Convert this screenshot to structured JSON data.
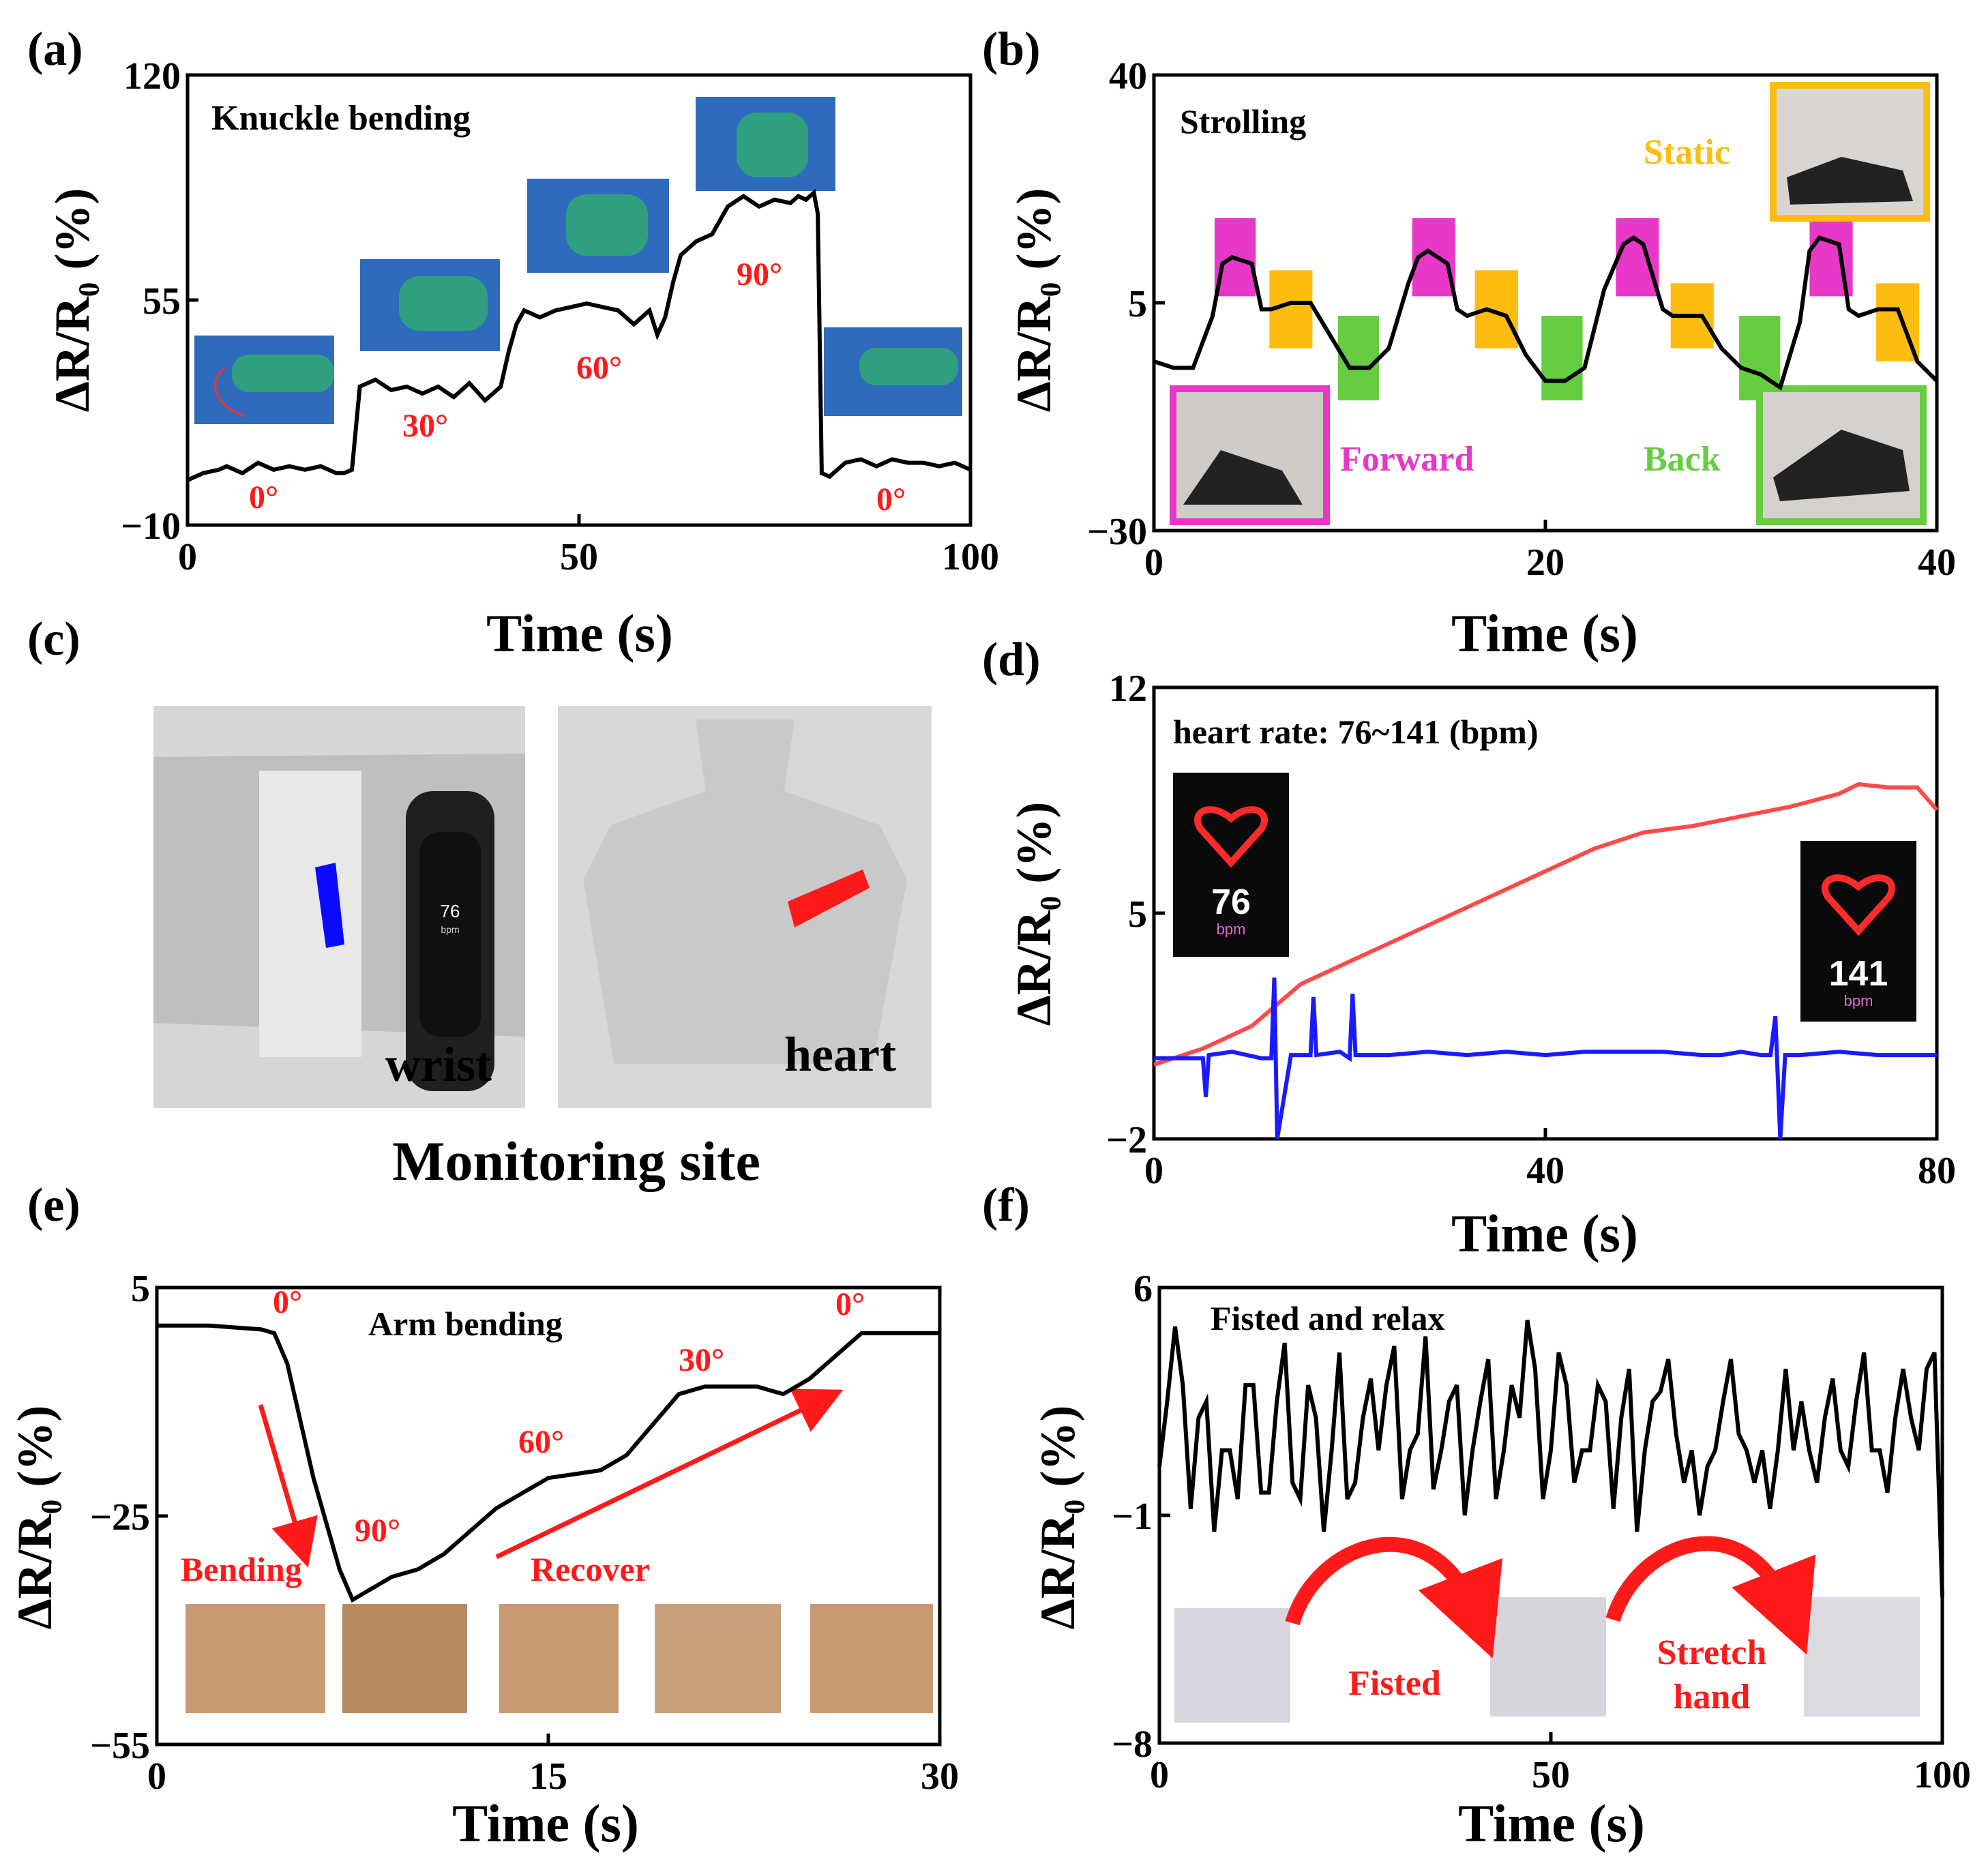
{
  "figure": {
    "panels": [
      {
        "id": "a",
        "label": "(a)"
      },
      {
        "id": "b",
        "label": "(b)"
      },
      {
        "id": "c",
        "label": "(c)"
      },
      {
        "id": "d",
        "label": "(d)"
      },
      {
        "id": "e",
        "label": "(e)"
      },
      {
        "id": "f",
        "label": "(f)"
      }
    ],
    "panel_c": {
      "wrist_label": "wrist",
      "heart_label": "heart",
      "caption": "Monitoring site",
      "watch_display": "76",
      "watch_unit": "bpm"
    },
    "panel_d_screens": {
      "left_value": "76",
      "right_value": "141",
      "unit": "bpm"
    },
    "panel_e_photos": 5,
    "panel_f_labels": {
      "fisted": "Fisted",
      "stretch1": "Stretch",
      "stretch2": "hand"
    }
  },
  "chart_data": [
    {
      "id": "a",
      "type": "line",
      "title": "Knuckle bending",
      "xlabel": "Time (s)",
      "ylabel": "ΔR/R₀ (%)",
      "xlim": [
        0,
        100
      ],
      "ylim": [
        -10,
        120
      ],
      "xticks": [
        0,
        50,
        100
      ],
      "yticks": [
        -10,
        55,
        120
      ],
      "annotations": [
        "0°",
        "30°",
        "60°",
        "90°",
        "0°"
      ],
      "series": [
        {
          "name": "knuckle",
          "color": "#000000",
          "x": [
            0,
            2,
            4,
            5,
            7,
            9,
            11,
            13,
            15,
            17,
            19,
            20,
            21,
            22,
            24,
            26,
            28,
            30,
            32,
            34,
            36,
            38,
            39,
            40,
            41,
            42,
            43,
            45,
            47,
            49,
            51,
            53,
            55,
            57,
            59,
            60,
            61,
            62,
            63,
            65,
            67,
            69,
            71,
            73,
            75,
            77,
            78,
            79,
            80,
            80.5,
            81,
            82,
            84,
            86,
            88,
            90,
            92,
            94,
            96,
            98,
            100
          ],
          "y": [
            3,
            5,
            6,
            7,
            5,
            8,
            6,
            7,
            6,
            7,
            5,
            5,
            6,
            30,
            32,
            29,
            30,
            28,
            30,
            27,
            31,
            26,
            28,
            30,
            40,
            48,
            52,
            50,
            52,
            53,
            54,
            53,
            52,
            48,
            52,
            45,
            50,
            60,
            68,
            72,
            74,
            82,
            85,
            82,
            84,
            83,
            85,
            84,
            86,
            80,
            5,
            4,
            8,
            9,
            7,
            9,
            8,
            8,
            7,
            8,
            6
          ]
        }
      ]
    },
    {
      "id": "b",
      "type": "line",
      "title": "Strolling",
      "xlabel": "Time (s)",
      "ylabel": "ΔR/R₀ (%)",
      "xlim": [
        0,
        40
      ],
      "ylim": [
        -30,
        40
      ],
      "xticks": [
        0,
        20,
        40
      ],
      "yticks": [
        -30,
        5,
        40
      ],
      "legend": [
        "Static",
        "Forward",
        "Back"
      ],
      "phase_colors": {
        "Forward": "#e838c8",
        "Static": "#fcbc10",
        "Back": "#66cc40"
      },
      "phases": [
        {
          "phase": "Forward",
          "x": [
            3.1,
            5.2
          ],
          "y": [
            6,
            18
          ]
        },
        {
          "phase": "Static",
          "x": [
            5.9,
            8.1
          ],
          "y": [
            -2,
            10
          ]
        },
        {
          "phase": "Back",
          "x": [
            9.4,
            11.5
          ],
          "y": [
            -10,
            3
          ]
        },
        {
          "phase": "Forward",
          "x": [
            13.2,
            15.4
          ],
          "y": [
            6,
            18
          ]
        },
        {
          "phase": "Static",
          "x": [
            16.4,
            18.6
          ],
          "y": [
            -2,
            10
          ]
        },
        {
          "phase": "Back",
          "x": [
            19.8,
            21.9
          ],
          "y": [
            -10,
            3
          ]
        },
        {
          "phase": "Forward",
          "x": [
            23.6,
            25.8
          ],
          "y": [
            6,
            18
          ]
        },
        {
          "phase": "Static",
          "x": [
            26.4,
            28.6
          ],
          "y": [
            -2,
            8
          ]
        },
        {
          "phase": "Back",
          "x": [
            29.9,
            32.0
          ],
          "y": [
            -10,
            3
          ]
        },
        {
          "phase": "Forward",
          "x": [
            33.5,
            35.7
          ],
          "y": [
            6,
            18
          ]
        },
        {
          "phase": "Static",
          "x": [
            36.9,
            39.1
          ],
          "y": [
            -4,
            8
          ]
        }
      ],
      "series": [
        {
          "name": "strolling",
          "color": "#000000",
          "x": [
            0,
            1,
            2,
            3,
            3.5,
            4,
            5,
            5.5,
            6,
            7,
            8,
            9,
            10,
            11,
            12,
            13,
            13.5,
            14,
            15,
            15.5,
            16,
            17,
            18,
            19,
            20,
            21,
            22,
            23,
            24,
            24.5,
            25,
            26,
            26.5,
            27,
            28,
            29,
            30,
            31,
            32,
            33,
            33.5,
            34,
            35,
            35.5,
            36,
            37,
            38,
            39,
            40
          ],
          "y": [
            -4,
            -5,
            -5,
            3,
            11,
            12,
            11,
            4,
            4,
            5,
            5,
            0,
            -5,
            -5,
            -2,
            8,
            12,
            13,
            11,
            4,
            3,
            4,
            3,
            -3,
            -7,
            -7,
            -5,
            7,
            14,
            15,
            14,
            4,
            3,
            3,
            3,
            -2,
            -5,
            -6,
            -8,
            2,
            13,
            15,
            14,
            4,
            3,
            4,
            4,
            -4,
            -7
          ]
        }
      ]
    },
    {
      "id": "d",
      "type": "line",
      "title": "heart rate: 76~141 (bpm)",
      "xlabel": "Time (s)",
      "ylabel": "ΔR/R₀ (%)",
      "xlim": [
        0,
        80
      ],
      "ylim": [
        -2,
        12
      ],
      "xticks": [
        0,
        40,
        80
      ],
      "yticks": [
        -2,
        5,
        12
      ],
      "series": [
        {
          "name": "heart",
          "color": "#ff4a4a",
          "x": [
            0,
            5,
            10,
            15,
            20,
            25,
            30,
            35,
            40,
            45,
            50,
            55,
            60,
            65,
            70,
            72,
            75,
            78,
            80
          ],
          "y": [
            0.3,
            0.8,
            1.5,
            2.8,
            3.5,
            4.2,
            4.9,
            5.6,
            6.3,
            7.0,
            7.5,
            7.7,
            8.0,
            8.3,
            8.7,
            9.0,
            8.9,
            8.9,
            8.2
          ]
        },
        {
          "name": "wrist",
          "color": "#1a1aff",
          "x": [
            0,
            5,
            5.3,
            5.6,
            8,
            11,
            12,
            12.3,
            12.6,
            14,
            16,
            16.3,
            16.6,
            19,
            20,
            20.3,
            20.6,
            24,
            28,
            32,
            36,
            40,
            44,
            48,
            52,
            56,
            58,
            60,
            62,
            63,
            63.5,
            64,
            64.5,
            66,
            70,
            74,
            78,
            80
          ],
          "y": [
            0.5,
            0.5,
            -0.7,
            0.6,
            0.7,
            0.5,
            0.5,
            3.0,
            -2.0,
            0.6,
            0.6,
            2.4,
            0.6,
            0.7,
            0.5,
            2.5,
            0.6,
            0.6,
            0.7,
            0.6,
            0.7,
            0.6,
            0.7,
            0.7,
            0.7,
            0.6,
            0.6,
            0.7,
            0.6,
            0.6,
            1.8,
            -2.0,
            0.6,
            0.6,
            0.7,
            0.6,
            0.6,
            0.6
          ]
        }
      ]
    },
    {
      "id": "e",
      "type": "line",
      "title": "Arm bending",
      "xlabel": "Time (s)",
      "ylabel": "ΔR/R₀ (%)",
      "xlim": [
        0,
        30
      ],
      "ylim": [
        -55,
        5
      ],
      "xticks": [
        0,
        15,
        30
      ],
      "yticks": [
        -55,
        -25,
        5
      ],
      "annotations": [
        "0°",
        "90°",
        "60°",
        "30°",
        "0°",
        "Bending",
        "Recover"
      ],
      "series": [
        {
          "name": "arm",
          "color": "#000000",
          "x": [
            0,
            2,
            4,
            4.5,
            5,
            6,
            7,
            7.5,
            8,
            9,
            10,
            11,
            12,
            13,
            14,
            15,
            16,
            17,
            18,
            19,
            20,
            21,
            22,
            23,
            24,
            25,
            26,
            27,
            28,
            29,
            30
          ],
          "y": [
            0,
            0,
            -0.5,
            -1,
            -5,
            -20,
            -32,
            -36,
            -35,
            -33,
            -32,
            -30,
            -27,
            -24,
            -22,
            -20,
            -19.5,
            -19,
            -17,
            -13,
            -9,
            -8,
            -8,
            -8,
            -9,
            -7,
            -4,
            -1,
            -1,
            -1,
            -1
          ]
        }
      ]
    },
    {
      "id": "f",
      "type": "line",
      "title": "Fisted and relax",
      "xlabel": "Time (s)",
      "ylabel": "ΔR/R₀ (%)",
      "xlim": [
        0,
        100
      ],
      "ylim": [
        -8,
        6
      ],
      "xticks": [
        0,
        50,
        100
      ],
      "yticks": [
        -8,
        -1,
        6
      ],
      "annotations": [
        "Fisted",
        "Stretch hand"
      ],
      "series": [
        {
          "name": "fist",
          "color": "#000000",
          "x": [
            0,
            1,
            2,
            3,
            4,
            5,
            6,
            7,
            8,
            9,
            10,
            11,
            12,
            13,
            14,
            15,
            16,
            17,
            18,
            19,
            20,
            21,
            22,
            23,
            24,
            25,
            26,
            27,
            28,
            29,
            30,
            31,
            32,
            33,
            34,
            35,
            36,
            37,
            38,
            39,
            40,
            41,
            42,
            43,
            44,
            45,
            46,
            47,
            48,
            49,
            50,
            51,
            52,
            53,
            54,
            55,
            56,
            57,
            58,
            59,
            60,
            61,
            62,
            63,
            64,
            65,
            66,
            67,
            68,
            69,
            70,
            71,
            72,
            73,
            74,
            75,
            76,
            77,
            78,
            79,
            80,
            81,
            82,
            83,
            84,
            85,
            86,
            87,
            88,
            89,
            90,
            91,
            92,
            93,
            94,
            95,
            96,
            97,
            98,
            99,
            100
          ],
          "y": [
            0.5,
            2.5,
            4.8,
            3,
            -0.8,
            2,
            2.5,
            -1.5,
            1,
            1,
            -0.5,
            3,
            3,
            -0.3,
            -0.3,
            2.5,
            4.3,
            0,
            -0.5,
            3,
            2,
            -1.5,
            1,
            4,
            -0.5,
            0,
            2,
            3.2,
            1,
            3,
            4.2,
            -0.5,
            1,
            1.5,
            4.5,
            -0.2,
            1,
            2.5,
            3,
            -1,
            1,
            2.5,
            3.8,
            -0.5,
            1,
            3,
            2,
            5,
            3.5,
            -0.5,
            1,
            4,
            3,
            0,
            1,
            1,
            3,
            2.5,
            -0.8,
            2,
            3.5,
            -1.5,
            1,
            2.5,
            2.8,
            3.8,
            1.5,
            0,
            1,
            -1,
            0.5,
            1,
            2.5,
            3.8,
            1.5,
            1,
            0,
            1,
            -0.8,
            1,
            3.5,
            1,
            2.5,
            1,
            0,
            2,
            3.2,
            1,
            0.5,
            2.5,
            4,
            1,
            1,
            -0.3,
            2,
            3.5,
            2,
            1,
            3.5,
            4,
            -3.5
          ]
        }
      ]
    }
  ]
}
